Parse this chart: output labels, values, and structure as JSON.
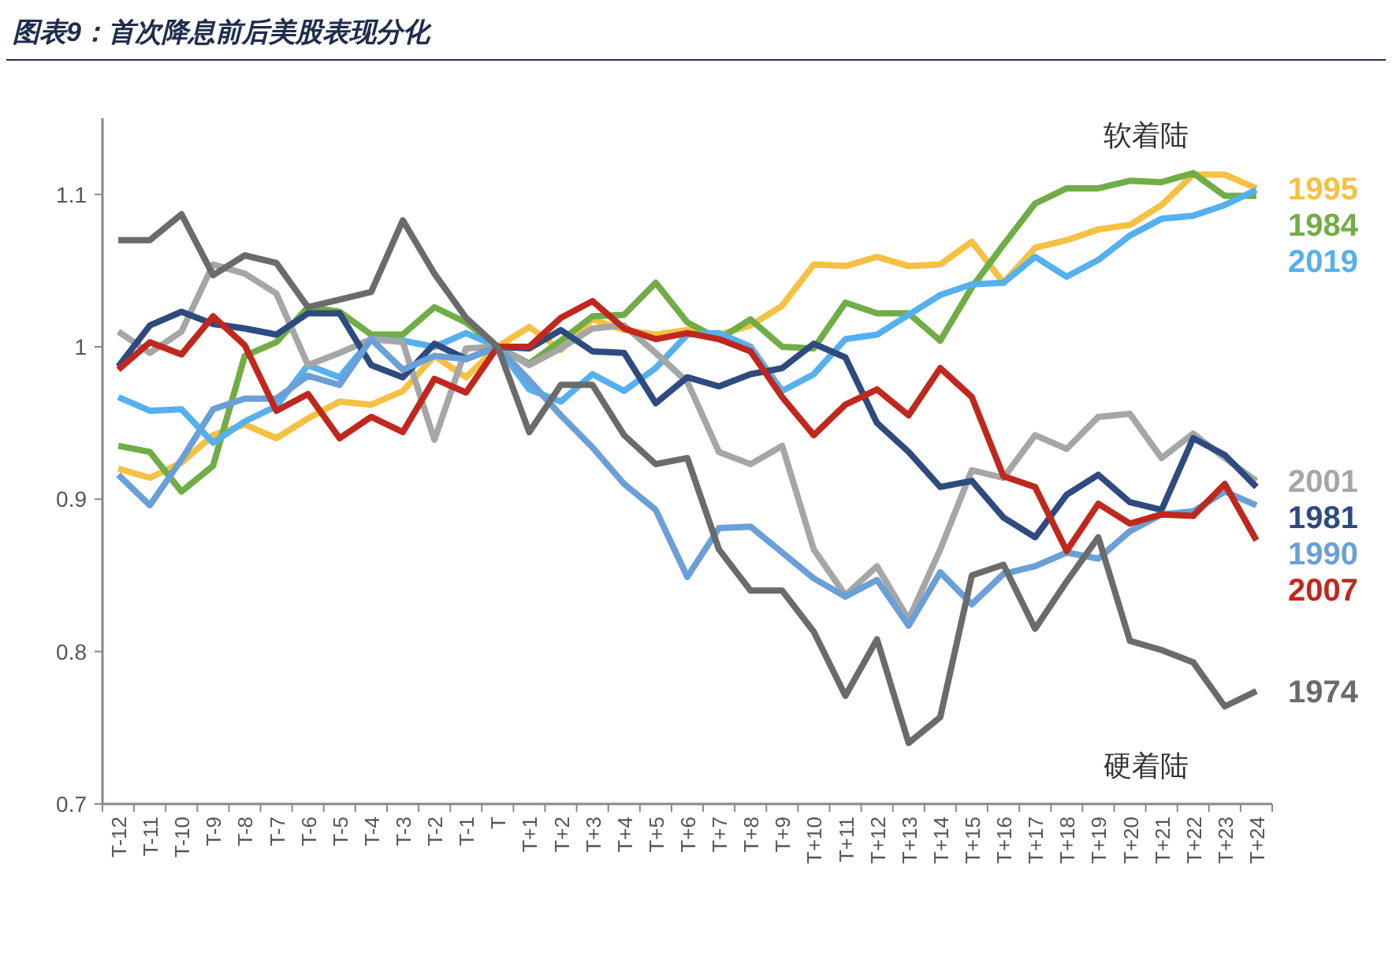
{
  "chart_data": {
    "type": "line",
    "title": "图表9：首次降息前后美股表现分化",
    "categories": [
      "T-12",
      "T-11",
      "T-10",
      "T-9",
      "T-8",
      "T-7",
      "T-6",
      "T-5",
      "T-4",
      "T-3",
      "T-2",
      "T-1",
      "T",
      "T+1",
      "T+2",
      "T+3",
      "T+4",
      "T+5",
      "T+6",
      "T+7",
      "T+8",
      "T+9",
      "T+10",
      "T+11",
      "T+12",
      "T+13",
      "T+14",
      "T+15",
      "T+16",
      "T+17",
      "T+18",
      "T+19",
      "T+20",
      "T+21",
      "T+22",
      "T+23",
      "T+24"
    ],
    "series": [
      {
        "name": "1995",
        "color": "#f5c142",
        "values": [
          0.92,
          0.914,
          0.924,
          0.942,
          0.949,
          0.94,
          0.953,
          0.964,
          0.962,
          0.971,
          0.994,
          0.98,
          1.0,
          1.013,
          0.998,
          1.018,
          1.011,
          1.008,
          1.011,
          1.008,
          1.014,
          1.027,
          1.054,
          1.053,
          1.059,
          1.053,
          1.054,
          1.069,
          1.042,
          1.065,
          1.07,
          1.077,
          1.08,
          1.093,
          1.113,
          1.113,
          1.104
        ]
      },
      {
        "name": "1984",
        "color": "#70ad47",
        "values": [
          0.935,
          0.931,
          0.905,
          0.922,
          0.994,
          1.003,
          1.026,
          1.023,
          1.008,
          1.008,
          1.026,
          1.016,
          1.0,
          0.989,
          1.004,
          1.02,
          1.021,
          1.042,
          1.016,
          1.005,
          1.018,
          1.0,
          0.999,
          1.029,
          1.022,
          1.022,
          1.004,
          1.039,
          1.067,
          1.094,
          1.104,
          1.104,
          1.109,
          1.108,
          1.114,
          1.099,
          1.099
        ]
      },
      {
        "name": "2019",
        "color": "#55b0ee",
        "values": [
          0.967,
          0.958,
          0.959,
          0.937,
          0.951,
          0.961,
          0.988,
          0.98,
          1.005,
          1.004,
          1.0,
          1.009,
          1.0,
          0.972,
          0.964,
          0.982,
          0.971,
          0.986,
          1.008,
          1.009,
          1.0,
          0.971,
          0.982,
          1.005,
          1.008,
          1.021,
          1.034,
          1.041,
          1.042,
          1.059,
          1.046,
          1.057,
          1.073,
          1.084,
          1.086,
          1.093,
          1.103
        ]
      },
      {
        "name": "2001",
        "color": "#a6a6a6",
        "values": [
          1.01,
          0.996,
          1.01,
          1.054,
          1.048,
          1.035,
          0.988,
          0.996,
          1.005,
          1.003,
          0.939,
          0.999,
          1.0,
          0.988,
          0.999,
          1.012,
          1.014,
          0.996,
          0.977,
          0.931,
          0.923,
          0.935,
          0.867,
          0.837,
          0.856,
          0.821,
          0.867,
          0.919,
          0.914,
          0.942,
          0.933,
          0.954,
          0.956,
          0.927,
          0.943,
          0.927,
          0.912
        ]
      },
      {
        "name": "1981",
        "color": "#2f4a7f",
        "values": [
          0.987,
          1.014,
          1.023,
          1.015,
          1.012,
          1.008,
          1.022,
          1.022,
          0.988,
          0.98,
          1.002,
          0.992,
          1.0,
          0.999,
          1.011,
          0.997,
          0.996,
          0.963,
          0.98,
          0.974,
          0.982,
          0.986,
          1.002,
          0.993,
          0.95,
          0.931,
          0.908,
          0.912,
          0.888,
          0.875,
          0.903,
          0.916,
          0.898,
          0.893,
          0.94,
          0.929,
          0.908
        ]
      },
      {
        "name": "1990",
        "color": "#6a9fd8",
        "values": [
          0.916,
          0.896,
          0.926,
          0.959,
          0.966,
          0.966,
          0.981,
          0.975,
          1.005,
          0.985,
          0.994,
          0.992,
          1.0,
          0.978,
          0.955,
          0.934,
          0.91,
          0.893,
          0.849,
          0.881,
          0.882,
          0.865,
          0.848,
          0.836,
          0.847,
          0.817,
          0.852,
          0.831,
          0.851,
          0.856,
          0.865,
          0.861,
          0.879,
          0.89,
          0.892,
          0.905,
          0.896
        ]
      },
      {
        "name": "2007",
        "color": "#c0281e",
        "values": [
          0.985,
          1.003,
          0.995,
          1.02,
          1.001,
          0.958,
          0.969,
          0.94,
          0.954,
          0.944,
          0.979,
          0.97,
          1.0,
          1.0,
          1.019,
          1.03,
          1.012,
          1.005,
          1.009,
          1.005,
          0.997,
          0.967,
          0.942,
          0.962,
          0.972,
          0.955,
          0.986,
          0.967,
          0.915,
          0.908,
          0.866,
          0.897,
          0.884,
          0.89,
          0.889,
          0.91,
          0.873
        ]
      },
      {
        "name": "1974",
        "color": "#6b6b6b",
        "values": [
          1.07,
          1.07,
          1.087,
          1.047,
          1.06,
          1.055,
          1.026,
          1.031,
          1.036,
          1.083,
          1.048,
          1.019,
          1.0,
          0.944,
          0.975,
          0.975,
          0.942,
          0.923,
          0.927,
          0.867,
          0.84,
          0.84,
          0.813,
          0.771,
          0.808,
          0.74,
          0.757,
          0.85,
          0.857,
          0.815,
          0.846,
          0.875,
          0.807,
          0.801,
          0.793,
          0.764,
          0.774
        ]
      }
    ],
    "ylim": [
      0.7,
      1.15
    ],
    "yticks": [
      0.7,
      0.8,
      0.9,
      1,
      1.1
    ],
    "grid": false,
    "marker": "none",
    "line_style": "solid",
    "annotations": [
      "软着陆",
      "硬着陆"
    ]
  }
}
